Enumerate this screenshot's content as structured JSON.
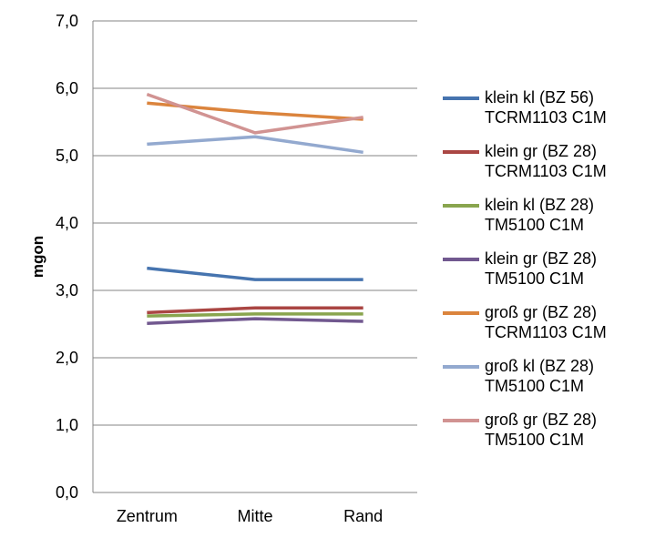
{
  "chart_data": {
    "type": "line",
    "categories": [
      "Zentrum",
      "Mitte",
      "Rand"
    ],
    "ylabel": "mgon",
    "xlabel": "",
    "title": "",
    "ylim": [
      0,
      7
    ],
    "yticks": [
      "0,0",
      "1,0",
      "2,0",
      "3,0",
      "4,0",
      "5,0",
      "6,0",
      "7,0"
    ],
    "grid": true,
    "legend_position": "right",
    "series": [
      {
        "name": "klein kl (BZ 56) TCRM1103 C1M",
        "name_lines": [
          "klein kl (BZ 56)",
          "TCRM1103 C1M"
        ],
        "color": "#4674AF",
        "values": [
          3.33,
          3.16,
          3.16
        ]
      },
      {
        "name": "klein gr (BZ 28) TCRM1103 C1M",
        "name_lines": [
          "klein gr (BZ 28)",
          "TCRM1103 C1M"
        ],
        "color": "#AA4643",
        "values": [
          2.67,
          2.74,
          2.74
        ]
      },
      {
        "name": "klein kl (BZ 28) TM5100 C1M",
        "name_lines": [
          "klein kl (BZ 28)",
          "TM5100 C1M"
        ],
        "color": "#89A54E",
        "values": [
          2.62,
          2.65,
          2.65
        ]
      },
      {
        "name": "klein gr (BZ 28) TM5100 C1M",
        "name_lines": [
          "klein gr (BZ 28)",
          "TM5100 C1M"
        ],
        "color": "#71588F",
        "values": [
          2.51,
          2.58,
          2.54
        ]
      },
      {
        "name": "groß gr (BZ 28) TCRM1103 C1M",
        "name_lines": [
          "groß gr (BZ 28)",
          "TCRM1103 C1M"
        ],
        "color": "#DB843D",
        "values": [
          5.78,
          5.64,
          5.54
        ]
      },
      {
        "name": "groß kl (BZ 28) TM5100 C1M",
        "name_lines": [
          "groß kl (BZ 28)",
          "TM5100 C1M"
        ],
        "color": "#93A9CF",
        "values": [
          5.17,
          5.28,
          5.05
        ]
      },
      {
        "name": "groß gr (BZ 28) TM5100 C1M",
        "name_lines": [
          "groß gr (BZ 28)",
          "TM5100 C1M"
        ],
        "color": "#D19392",
        "values": [
          5.91,
          5.34,
          5.57
        ]
      }
    ]
  }
}
